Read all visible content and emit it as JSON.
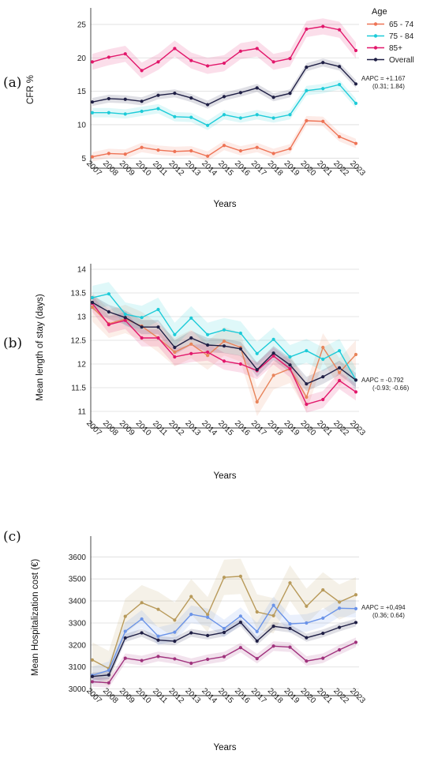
{
  "chart_data": [
    {
      "type": "line",
      "panel_label": "(a)",
      "xlabel": "Years",
      "ylabel": "CFR %",
      "ylim": [
        3.5,
        27
      ],
      "yticks": [
        5,
        10,
        15,
        20,
        25
      ],
      "grid": "horizontal",
      "x": [
        "2007",
        "2008",
        "2009",
        "2010",
        "2011",
        "2012",
        "2013",
        "2014",
        "2015",
        "2016",
        "2017",
        "2018",
        "2019",
        "2020",
        "2021",
        "2022",
        "2023"
      ],
      "legend": {
        "title": "Age",
        "placement": "top-right"
      },
      "series": [
        {
          "name": "65 - 74",
          "color": "#ee7355",
          "values": [
            5.2,
            5.7,
            5.6,
            6.6,
            6.2,
            6.0,
            6.1,
            5.3,
            6.9,
            6.1,
            6.6,
            5.7,
            6.4,
            10.6,
            10.5,
            8.2,
            7.2
          ],
          "band": 0.7
        },
        {
          "name": "75 - 84",
          "color": "#1ccbd8",
          "values": [
            11.8,
            11.8,
            11.6,
            12.0,
            12.4,
            11.2,
            11.1,
            9.9,
            11.5,
            11.0,
            11.5,
            11.0,
            11.5,
            15.1,
            15.4,
            16.0,
            13.2
          ],
          "band": 0.7
        },
        {
          "name": "85+",
          "color": "#e2176b",
          "values": [
            19.4,
            20.1,
            20.6,
            18.1,
            19.4,
            21.4,
            19.6,
            18.8,
            19.2,
            21.0,
            21.4,
            19.4,
            19.9,
            24.3,
            24.7,
            24.2,
            21.1
          ],
          "band": 1.2
        },
        {
          "name": "Overall",
          "color": "#1f1f45",
          "values": [
            13.4,
            13.9,
            13.8,
            13.5,
            14.4,
            14.7,
            14.0,
            13.0,
            14.2,
            14.8,
            15.5,
            14.1,
            14.7,
            18.6,
            19.3,
            18.7,
            16.1
          ],
          "band": 0.6
        }
      ],
      "annotation": {
        "line1": "AAPC = +1.167",
        "line2": "(0.31; 1.84)"
      }
    },
    {
      "type": "line",
      "panel_label": "(b)",
      "xlabel": "Years",
      "ylabel": "Mean length of stay (days)",
      "ylim": [
        10.65,
        14.05
      ],
      "yticks": [
        11,
        11.5,
        12,
        12.5,
        13,
        13.5,
        14
      ],
      "grid": "horizontal",
      "x": [
        "2007",
        "2008",
        "2009",
        "2010",
        "2011",
        "2012",
        "2013",
        "2014",
        "2015",
        "2016",
        "2017",
        "2018",
        "2019",
        "2020",
        "2021",
        "2022",
        "2023"
      ],
      "series": [
        {
          "name": "65 - 74",
          "color": "#e8845a",
          "values": [
            13.2,
            12.85,
            12.95,
            12.8,
            12.55,
            12.25,
            12.42,
            12.18,
            12.48,
            12.35,
            11.2,
            11.76,
            11.9,
            11.3,
            12.35,
            11.82,
            12.2
          ],
          "band": 0.3
        },
        {
          "name": "75 - 84",
          "color": "#1ccbd8",
          "values": [
            13.4,
            13.48,
            13.05,
            12.98,
            13.15,
            12.62,
            12.97,
            12.62,
            12.72,
            12.65,
            12.22,
            12.52,
            12.15,
            12.28,
            12.1,
            12.28,
            11.66
          ],
          "band": 0.25
        },
        {
          "name": "85+",
          "color": "#e2176b",
          "values": [
            13.28,
            12.83,
            12.92,
            12.55,
            12.55,
            12.15,
            12.22,
            12.25,
            12.06,
            12.0,
            11.86,
            12.17,
            11.9,
            11.15,
            11.25,
            11.65,
            11.41
          ],
          "band": 0.18
        },
        {
          "name": "Overall",
          "color": "#1f1f45",
          "values": [
            13.3,
            13.1,
            12.98,
            12.78,
            12.78,
            12.35,
            12.55,
            12.4,
            12.38,
            12.32,
            11.88,
            12.23,
            11.98,
            11.58,
            11.73,
            11.92,
            11.66
          ],
          "band": 0.15
        }
      ],
      "annotation": {
        "line1": "AAPC = -0.792",
        "line2": "(-0.93; -0.66)"
      }
    },
    {
      "type": "line",
      "panel_label": "(c)",
      "xlabel": "Years",
      "ylabel": "Mean Hospitalization cost (€)",
      "ylim": [
        2970,
        3680
      ],
      "yticks": [
        3000,
        3100,
        3200,
        3300,
        3400,
        3500,
        3600
      ],
      "grid": "horizontal",
      "x": [
        "2007",
        "2008",
        "2009",
        "2010",
        "2011",
        "2012",
        "2013",
        "2014",
        "2015",
        "2016",
        "2017",
        "2018",
        "2019",
        "2020",
        "2021",
        "2022",
        "2023"
      ],
      "series": [
        {
          "name": "65 - 74",
          "color": "#b89a5a",
          "values": [
            3132,
            3093,
            3330,
            3392,
            3362,
            3313,
            3420,
            3338,
            3507,
            3512,
            3350,
            3333,
            3482,
            3376,
            3450,
            3395,
            3428
          ],
          "band": 80
        },
        {
          "name": "75 - 84",
          "color": "#6a93e8",
          "values": [
            3062,
            3085,
            3262,
            3318,
            3240,
            3258,
            3339,
            3326,
            3275,
            3331,
            3261,
            3380,
            3296,
            3300,
            3322,
            3367,
            3365
          ],
          "band": 40
        },
        {
          "name": "85+",
          "color": "#a0327d",
          "values": [
            3033,
            3028,
            3140,
            3129,
            3148,
            3137,
            3117,
            3135,
            3147,
            3188,
            3138,
            3195,
            3190,
            3127,
            3140,
            3178,
            3212
          ],
          "band": 22
        },
        {
          "name": "Overall",
          "color": "#1f1f45",
          "values": [
            3057,
            3064,
            3232,
            3255,
            3222,
            3217,
            3255,
            3243,
            3257,
            3303,
            3218,
            3285,
            3275,
            3233,
            3253,
            3280,
            3302
          ],
          "band": 18
        }
      ],
      "annotation": {
        "line1": "AAPC = +0,494",
        "line2": "(0.36; 0.64)"
      }
    }
  ]
}
